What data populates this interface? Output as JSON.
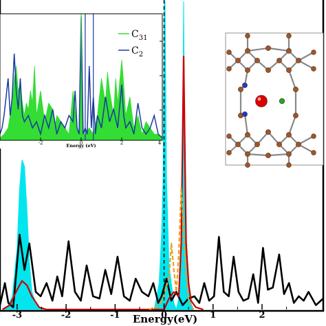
{
  "chart_data": [
    {
      "type": "line",
      "role": "main",
      "xlabel": "Energy(eV)",
      "ylabel": "",
      "xlim": [
        -3.35,
        3.25
      ],
      "x_ticks": [
        -3,
        -2,
        -1,
        0,
        1,
        2
      ],
      "x_tick_labels": [
        "-3",
        "-2",
        "-1",
        "0",
        "1",
        "2"
      ],
      "fermi_level": 0,
      "series": [
        {
          "color": "#000000",
          "fill": false,
          "x": [
            -3.35,
            -3.25,
            -3.18,
            -3.08,
            -2.95,
            -2.85,
            -2.75,
            -2.62,
            -2.52,
            -2.4,
            -2.28,
            -2.18,
            -2.08,
            -1.95,
            -1.82,
            -1.7,
            -1.58,
            -1.45,
            -1.32,
            -1.2,
            -1.08,
            -0.95,
            -0.82,
            -0.7,
            -0.58,
            -0.45,
            -0.32,
            -0.22,
            -0.12,
            -0.05,
            0.05,
            0.15,
            0.25,
            0.38,
            0.5,
            0.62,
            0.72,
            0.82,
            0.92,
            1.02,
            1.12,
            1.22,
            1.32,
            1.42,
            1.52,
            1.62,
            1.72,
            1.82,
            1.92,
            2.02,
            2.12,
            2.22,
            2.35,
            2.45,
            2.55,
            2.65,
            2.75,
            2.85,
            2.95,
            3.1,
            3.25
          ],
          "y": [
            0.2,
            1.2,
            0.3,
            0.1,
            3.4,
            1.8,
            3.0,
            0.8,
            0.6,
            1.2,
            0.4,
            1.5,
            0.6,
            3.1,
            0.8,
            0.4,
            2.0,
            0.6,
            0.5,
            1.8,
            0.7,
            2.4,
            0.6,
            0.4,
            1.4,
            0.8,
            0.6,
            1.2,
            0.3,
            0.6,
            1.4,
            0.4,
            0.8,
            0.2,
            0.5,
            0.6,
            0.3,
            1.2,
            0.4,
            0.6,
            3.3,
            0.8,
            0.6,
            2.4,
            0.8,
            0.4,
            0.5,
            1.6,
            0.3,
            2.8,
            0.9,
            1.0,
            2.5,
            0.7,
            1.2,
            0.3,
            0.6,
            0.4,
            0.8,
            0.2,
            0.5
          ]
        },
        {
          "color": "#00e5ee",
          "fill": true,
          "x": [
            -3.3,
            -3.2,
            -3.1,
            -3.0,
            -2.95,
            -2.9,
            -2.85,
            -2.8,
            -2.75,
            -2.7,
            -2.6,
            -2.5,
            -0.2,
            -0.1,
            -0.05,
            -0.02,
            0.0,
            0.02,
            0.05,
            0.1,
            0.2,
            0.25,
            0.3,
            0.35,
            0.38,
            0.4,
            0.42,
            0.45,
            0.5,
            0.55,
            0.6
          ],
          "y": [
            0,
            0.1,
            0.6,
            2.8,
            5.5,
            6.8,
            6.5,
            4.5,
            2.2,
            0.8,
            0.2,
            0,
            0,
            1.2,
            3.5,
            6.0,
            14,
            14,
            6.0,
            2.0,
            0.3,
            0,
            0.5,
            3.5,
            8.0,
            14,
            8.0,
            3.5,
            1.0,
            0.3,
            0
          ]
        },
        {
          "color": "#cc0000",
          "fill": false,
          "x": [
            -3.3,
            -3.15,
            -3.0,
            -2.9,
            -2.8,
            -2.7,
            -2.55,
            -2.4,
            0.0,
            0.1,
            0.2,
            0.3,
            0.35,
            0.38,
            0.4,
            0.42,
            0.45,
            0.5,
            0.55,
            0.65,
            0.8
          ],
          "y": [
            0,
            0.2,
            0.9,
            1.3,
            1.1,
            0.6,
            0.1,
            0,
            0,
            0.5,
            0.8,
            0.6,
            3.0,
            8.0,
            11.5,
            8.0,
            3.0,
            1.2,
            0.4,
            0.1,
            0
          ]
        },
        {
          "color": "#e8a020",
          "fill": false,
          "dashed": true,
          "x": [
            -0.3,
            -0.1,
            0.0,
            0.1,
            0.15,
            0.2,
            0.25,
            0.3,
            0.35,
            0.4,
            0.45,
            0.5,
            0.6
          ],
          "y": [
            0,
            0.2,
            0.6,
            1.5,
            3.0,
            1.8,
            0.8,
            2.5,
            5.5,
            3.5,
            1.5,
            0.4,
            0
          ]
        }
      ]
    },
    {
      "type": "area",
      "role": "inset",
      "xlabel": "Energy (eV)",
      "ylabel": "",
      "xlim": [
        -4,
        4
      ],
      "x_ticks": [
        -2,
        0,
        2,
        4
      ],
      "x_tick_labels": [
        "-2",
        "0",
        "2",
        "4"
      ],
      "legend": "top-right",
      "series": [
        {
          "name": "C31",
          "color": "#33dd33",
          "fill": true,
          "x": [
            -4.0,
            -3.8,
            -3.6,
            -3.4,
            -3.3,
            -3.2,
            -3.1,
            -3.0,
            -2.9,
            -2.8,
            -2.7,
            -2.6,
            -2.5,
            -2.4,
            -2.3,
            -2.2,
            -2.0,
            -1.8,
            -1.6,
            -1.4,
            -1.3,
            -1.2,
            -1.0,
            -0.8,
            -0.6,
            -0.4,
            -0.2,
            -0.1,
            0.0,
            0.1,
            0.2,
            0.4,
            0.6,
            0.8,
            1.0,
            1.2,
            1.3,
            1.4,
            1.6,
            1.7,
            1.8,
            2.0,
            2.1,
            2.2,
            2.4,
            2.6,
            2.8,
            3.0,
            3.2,
            3.4,
            3.6,
            3.8,
            4.0
          ],
          "y": [
            0.02,
            0.05,
            0.1,
            0.3,
            0.5,
            0.6,
            0.4,
            0.45,
            0.3,
            0.2,
            0.3,
            0.25,
            0.4,
            0.3,
            0.6,
            0.2,
            0.4,
            0.15,
            0.3,
            0.25,
            0.1,
            0.2,
            0.15,
            0.1,
            0.05,
            0.4,
            0.1,
            0.05,
            0.9,
            0.05,
            0.05,
            0.1,
            0.05,
            0.2,
            0.5,
            0.3,
            0.55,
            0.4,
            0.2,
            0.5,
            0.3,
            0.65,
            0.45,
            0.2,
            0.35,
            0.1,
            0.2,
            0.05,
            0.15,
            0.1,
            0.05,
            0.05,
            0.02
          ]
        },
        {
          "name": "C2",
          "color": "#1a3aa0",
          "fill": false,
          "x": [
            -4.0,
            -3.9,
            -3.8,
            -3.6,
            -3.5,
            -3.4,
            -3.3,
            -3.2,
            -3.1,
            -3.0,
            -2.9,
            -2.8,
            -2.6,
            -2.4,
            -2.2,
            -2.0,
            -1.8,
            -1.6,
            -1.4,
            -1.2,
            -1.0,
            -0.8,
            -0.6,
            -0.4,
            -0.3,
            -0.2,
            -0.1,
            0.0,
            0.1,
            0.2,
            0.3,
            0.4,
            0.5,
            0.6,
            0.7,
            0.8,
            1.0,
            1.2,
            1.4,
            1.6,
            1.8,
            2.0,
            2.1,
            2.2,
            2.4,
            2.6,
            2.8,
            3.0,
            3.2,
            3.4,
            3.6,
            3.8,
            4.0
          ],
          "y": [
            0.05,
            0.1,
            0.2,
            0.5,
            0.2,
            0.35,
            0.7,
            0.4,
            0.25,
            0.5,
            0.2,
            0.15,
            0.2,
            0.1,
            0.15,
            0.05,
            0.2,
            0.1,
            0.25,
            0.05,
            0.15,
            0.1,
            0.2,
            0.15,
            0.4,
            0.1,
            0.05,
            1.0,
            0.05,
            0.1,
            0.05,
            0.6,
            0.1,
            0.35,
            0.05,
            0.2,
            0.1,
            0.35,
            0.15,
            0.25,
            0.1,
            0.45,
            0.2,
            0.1,
            0.15,
            0.05,
            0.3,
            0.1,
            0.05,
            0.1,
            0.2,
            0.05,
            0.02
          ]
        }
      ]
    }
  ],
  "legend": {
    "entries": [
      {
        "base": "C",
        "sub": "31",
        "color": "#33dd33"
      },
      {
        "base": "C",
        "sub": "2",
        "color": "#1a3aa0"
      }
    ]
  },
  "colors": {
    "total_dos": "#000000",
    "cyan_fill": "#00e5ee",
    "red_line": "#cc0000",
    "orange_dashed": "#e8a020",
    "c31_fill": "#33dd33",
    "c2_line": "#1a3aa0",
    "atom_carbon": "#a0552a",
    "atom_metal": "#dd0000",
    "atom_nitrogen": "#1a3ad0",
    "atom_green": "#22aa22"
  },
  "structure_icon": "molecular-structure-diagram"
}
